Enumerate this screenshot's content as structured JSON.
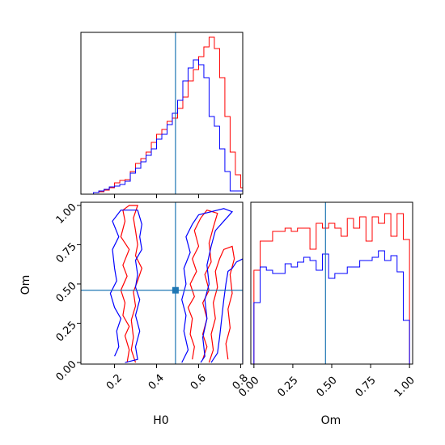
{
  "chart_data": {
    "type": "corner",
    "parameters": [
      "H0",
      "Om"
    ],
    "axis_labels": {
      "H0": "H0",
      "Om": "Om"
    },
    "truths": {
      "H0": 0.49,
      "Om": 0.46
    },
    "colors": {
      "series_red": "#ff0000",
      "series_blue": "#0000ff",
      "truth": "#1f77b4"
    },
    "panels": {
      "h0_hist": {
        "xlim": [
          0.04,
          0.81
        ],
        "xticks": [
          0.2,
          0.4,
          0.6,
          0.8
        ],
        "bin_edges": [
          0.1,
          0.125,
          0.15,
          0.175,
          0.2,
          0.225,
          0.25,
          0.275,
          0.3,
          0.325,
          0.35,
          0.375,
          0.4,
          0.425,
          0.45,
          0.475,
          0.5,
          0.525,
          0.55,
          0.575,
          0.6,
          0.625,
          0.65,
          0.675,
          0.7,
          0.725,
          0.75,
          0.775,
          0.8,
          0.825
        ],
        "series": [
          {
            "color_key": "series_red",
            "values": [
              0.01,
              0.015,
              0.025,
              0.04,
              0.07,
              0.085,
              0.09,
              0.14,
              0.19,
              0.22,
              0.26,
              0.32,
              0.37,
              0.4,
              0.45,
              0.47,
              0.53,
              0.6,
              0.7,
              0.77,
              0.85,
              0.91,
              0.97,
              0.9,
              0.72,
              0.48,
              0.26,
              0.12,
              0.04
            ]
          },
          {
            "color_key": "series_blue",
            "values": [
              0.01,
              0.02,
              0.03,
              0.045,
              0.05,
              0.06,
              0.08,
              0.13,
              0.16,
              0.2,
              0.24,
              0.28,
              0.34,
              0.37,
              0.43,
              0.5,
              0.58,
              0.7,
              0.78,
              0.83,
              0.8,
              0.72,
              0.48,
              0.42,
              0.28,
              0.14,
              0.02,
              0.02,
              0.02
            ]
          }
        ]
      },
      "om_hist": {
        "xlim": [
          -0.02,
          1.02
        ],
        "xticks": [
          0.0,
          0.25,
          0.5,
          0.75,
          1.0
        ],
        "xtick_labels": [
          "0.00",
          "0.25",
          "0.50",
          "0.75",
          "1.00"
        ],
        "bin_edges": [
          0.0,
          0.04,
          0.08,
          0.12,
          0.16,
          0.2,
          0.24,
          0.28,
          0.32,
          0.36,
          0.4,
          0.44,
          0.48,
          0.52,
          0.56,
          0.6,
          0.64,
          0.68,
          0.72,
          0.76,
          0.8,
          0.84,
          0.88,
          0.92,
          0.96,
          1.0
        ],
        "series": [
          {
            "color_key": "series_red",
            "values": [
              0.58,
              0.76,
              0.76,
              0.82,
              0.82,
              0.84,
              0.82,
              0.84,
              0.84,
              0.71,
              0.87,
              0.84,
              0.87,
              0.84,
              0.79,
              0.9,
              0.84,
              0.91,
              0.76,
              0.91,
              0.87,
              0.93,
              0.79,
              0.93,
              0.77
            ]
          },
          {
            "color_key": "series_blue",
            "values": [
              0.38,
              0.6,
              0.58,
              0.56,
              0.56,
              0.62,
              0.6,
              0.63,
              0.66,
              0.64,
              0.58,
              0.68,
              0.53,
              0.56,
              0.56,
              0.6,
              0.6,
              0.64,
              0.64,
              0.66,
              0.7,
              0.64,
              0.67,
              0.57,
              0.27
            ]
          }
        ]
      },
      "joint": {
        "xlim": [
          0.04,
          0.81
        ],
        "ylim": [
          -0.01,
          1.02
        ],
        "xticks": [
          0.2,
          0.4,
          0.6,
          0.8
        ],
        "yticks": [
          0.0,
          0.25,
          0.5,
          0.75,
          1.0
        ],
        "ytick_labels": [
          "0.00",
          "0.25",
          "0.50",
          "0.75",
          "1.00"
        ],
        "contours": [
          {
            "color_key": "series_red",
            "points": [
              [
                0.26,
                0.0
              ],
              [
                0.27,
                0.08
              ],
              [
                0.25,
                0.17
              ],
              [
                0.27,
                0.23
              ],
              [
                0.24,
                0.3
              ],
              [
                0.25,
                0.38
              ],
              [
                0.23,
                0.46
              ],
              [
                0.26,
                0.55
              ],
              [
                0.24,
                0.62
              ],
              [
                0.27,
                0.72
              ],
              [
                0.23,
                0.8
              ],
              [
                0.25,
                0.9
              ],
              [
                0.24,
                0.97
              ],
              [
                0.27,
                1.0
              ],
              [
                0.31,
                1.0
              ],
              [
                0.29,
                0.92
              ],
              [
                0.3,
                0.84
              ],
              [
                0.31,
                0.75
              ],
              [
                0.3,
                0.68
              ],
              [
                0.33,
                0.6
              ],
              [
                0.31,
                0.52
              ],
              [
                0.29,
                0.45
              ],
              [
                0.3,
                0.36
              ],
              [
                0.28,
                0.27
              ],
              [
                0.29,
                0.16
              ],
              [
                0.28,
                0.08
              ],
              [
                0.3,
                0.0
              ]
            ]
          },
          {
            "color_key": "series_blue",
            "points": [
              [
                0.2,
                0.04
              ],
              [
                0.22,
                0.1
              ],
              [
                0.21,
                0.2
              ],
              [
                0.23,
                0.28
              ],
              [
                0.2,
                0.35
              ],
              [
                0.18,
                0.44
              ],
              [
                0.21,
                0.52
              ],
              [
                0.2,
                0.6
              ],
              [
                0.19,
                0.72
              ],
              [
                0.22,
                0.8
              ],
              [
                0.19,
                0.9
              ],
              [
                0.23,
                0.97
              ],
              [
                0.31,
                0.97
              ],
              [
                0.33,
                0.88
              ],
              [
                0.32,
                0.8
              ],
              [
                0.33,
                0.72
              ],
              [
                0.3,
                0.65
              ],
              [
                0.31,
                0.56
              ],
              [
                0.3,
                0.48
              ],
              [
                0.32,
                0.4
              ],
              [
                0.3,
                0.3
              ],
              [
                0.32,
                0.2
              ],
              [
                0.3,
                0.1
              ],
              [
                0.31,
                0.02
              ],
              [
                0.25,
                0.0
              ]
            ]
          },
          {
            "color_key": "series_red",
            "points": [
              [
                0.57,
                0.02
              ],
              [
                0.58,
                0.1
              ],
              [
                0.56,
                0.18
              ],
              [
                0.57,
                0.28
              ],
              [
                0.55,
                0.35
              ],
              [
                0.58,
                0.42
              ],
              [
                0.56,
                0.5
              ],
              [
                0.59,
                0.58
              ],
              [
                0.57,
                0.66
              ],
              [
                0.6,
                0.74
              ],
              [
                0.58,
                0.84
              ],
              [
                0.61,
                0.92
              ],
              [
                0.64,
                0.97
              ],
              [
                0.69,
                0.95
              ],
              [
                0.67,
                0.86
              ],
              [
                0.65,
                0.76
              ],
              [
                0.66,
                0.64
              ],
              [
                0.63,
                0.56
              ],
              [
                0.65,
                0.46
              ],
              [
                0.62,
                0.38
              ],
              [
                0.64,
                0.28
              ],
              [
                0.62,
                0.18
              ],
              [
                0.64,
                0.1
              ],
              [
                0.62,
                0.02
              ]
            ]
          },
          {
            "color_key": "series_red",
            "points": [
              [
                0.65,
                0.0
              ],
              [
                0.67,
                0.08
              ],
              [
                0.66,
                0.18
              ],
              [
                0.68,
                0.28
              ],
              [
                0.67,
                0.38
              ],
              [
                0.69,
                0.48
              ],
              [
                0.68,
                0.58
              ],
              [
                0.7,
                0.66
              ],
              [
                0.72,
                0.72
              ],
              [
                0.76,
                0.74
              ],
              [
                0.77,
                0.66
              ],
              [
                0.75,
                0.56
              ],
              [
                0.76,
                0.44
              ],
              [
                0.74,
                0.34
              ],
              [
                0.75,
                0.22
              ],
              [
                0.73,
                0.12
              ],
              [
                0.74,
                0.02
              ]
            ]
          },
          {
            "color_key": "series_blue",
            "points": [
              [
                0.52,
                0.0
              ],
              [
                0.55,
                0.08
              ],
              [
                0.53,
                0.2
              ],
              [
                0.54,
                0.3
              ],
              [
                0.52,
                0.4
              ],
              [
                0.54,
                0.5
              ],
              [
                0.53,
                0.6
              ],
              [
                0.56,
                0.7
              ],
              [
                0.54,
                0.8
              ],
              [
                0.57,
                0.88
              ],
              [
                0.6,
                0.94
              ],
              [
                0.66,
                0.96
              ],
              [
                0.72,
                0.98
              ],
              [
                0.76,
                0.96
              ],
              [
                0.72,
                0.9
              ],
              [
                0.68,
                0.84
              ],
              [
                0.66,
                0.74
              ],
              [
                0.64,
                0.62
              ],
              [
                0.65,
                0.5
              ],
              [
                0.63,
                0.4
              ],
              [
                0.64,
                0.28
              ],
              [
                0.62,
                0.16
              ],
              [
                0.63,
                0.04
              ],
              [
                0.61,
                0.0
              ]
            ]
          },
          {
            "color_key": "series_blue",
            "points": [
              [
                0.66,
                0.0
              ],
              [
                0.69,
                0.06
              ],
              [
                0.7,
                0.16
              ],
              [
                0.71,
                0.28
              ],
              [
                0.72,
                0.4
              ],
              [
                0.73,
                0.5
              ],
              [
                0.74,
                0.58
              ],
              [
                0.76,
                0.6
              ],
              [
                0.78,
                0.64
              ],
              [
                0.81,
                0.66
              ],
              [
                0.81,
                0.0
              ]
            ]
          }
        ]
      }
    }
  }
}
